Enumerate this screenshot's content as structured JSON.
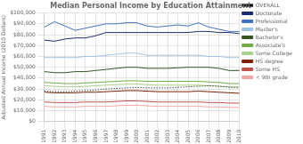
{
  "chart_data": {
    "type": "line",
    "title": "Median Personal Income by Education Attainment",
    "ylabel": "Adjusted Annual Income (2010 Dollars)",
    "categories": [
      "1991",
      "1992",
      "1993",
      "1994",
      "1995",
      "1996",
      "1997",
      "1998",
      "1999",
      "2000",
      "2001",
      "2002",
      "2003",
      "2004",
      "2005",
      "2006",
      "2007",
      "2008",
      "2009",
      "2010"
    ],
    "series": [
      {
        "name": "OVERALL",
        "color": "#000000",
        "line_style": "dotted",
        "values": [
          28000,
          27500,
          27500,
          28000,
          28500,
          29000,
          30000,
          30500,
          31000,
          31500,
          31000,
          31000,
          31000,
          31500,
          32000,
          32500,
          33000,
          32500,
          31500,
          31000
        ]
      },
      {
        "name": "Doctorate",
        "color": "#1f2d6e",
        "line_style": "solid",
        "values": [
          75000,
          74000,
          76000,
          77000,
          77000,
          79000,
          82000,
          82000,
          82000,
          82000,
          82000,
          82000,
          82000,
          82000,
          82000,
          83000,
          83000,
          82000,
          82000,
          81000
        ]
      },
      {
        "name": "Professional",
        "color": "#4472c4",
        "line_style": "solid",
        "values": [
          87000,
          92000,
          88000,
          84000,
          86000,
          88000,
          90000,
          90000,
          91000,
          91000,
          88000,
          87000,
          88000,
          89000,
          88000,
          91000,
          87000,
          85000,
          83000,
          83000
        ]
      },
      {
        "name": "Master's",
        "color": "#9dc3e6",
        "line_style": "solid",
        "values": [
          59000,
          59000,
          59000,
          59000,
          60000,
          60000,
          61000,
          62000,
          63000,
          63000,
          61000,
          61000,
          61000,
          61000,
          61000,
          61000,
          60000,
          60000,
          59000,
          59000
        ]
      },
      {
        "name": "Bachelor's",
        "color": "#375623",
        "line_style": "solid",
        "values": [
          46000,
          45000,
          45000,
          46000,
          46000,
          47000,
          48000,
          49000,
          50000,
          50000,
          49000,
          49000,
          49000,
          49500,
          50000,
          50000,
          50000,
          49000,
          47000,
          47000
        ]
      },
      {
        "name": "Associate's",
        "color": "#70ad47",
        "line_style": "solid",
        "values": [
          36000,
          35500,
          35000,
          35000,
          35500,
          36000,
          36500,
          37000,
          37500,
          37500,
          37000,
          37000,
          37000,
          37000,
          37000,
          37000,
          36500,
          36000,
          35000,
          35000
        ]
      },
      {
        "name": "Some College",
        "color": "#a9d18e",
        "line_style": "solid",
        "values": [
          33000,
          32500,
          32000,
          32000,
          32500,
          33000,
          33500,
          34000,
          34500,
          34500,
          34000,
          33500,
          33500,
          33500,
          33500,
          33500,
          33000,
          32500,
          32000,
          32000
        ]
      },
      {
        "name": "HS degree",
        "color": "#7b2200",
        "line_style": "solid",
        "values": [
          27000,
          26500,
          26500,
          26500,
          27000,
          27000,
          27500,
          28000,
          28500,
          28500,
          28000,
          27500,
          27500,
          27500,
          27500,
          28000,
          27500,
          27000,
          26500,
          26000
        ]
      },
      {
        "name": "Some HS",
        "color": "#c0504d",
        "line_style": "solid",
        "values": [
          18000,
          17500,
          17500,
          17500,
          18000,
          18000,
          18000,
          18500,
          19000,
          19000,
          18500,
          18000,
          18000,
          18000,
          18000,
          18000,
          17500,
          17500,
          17000,
          17000
        ]
      },
      {
        "name": "< 9th grade",
        "color": "#f4a7a3",
        "line_style": "solid",
        "values": [
          14000,
          13500,
          13500,
          13500,
          14000,
          14000,
          14000,
          14500,
          15000,
          15000,
          14500,
          14000,
          14000,
          14000,
          14000,
          14000,
          13500,
          13500,
          13000,
          13000
        ]
      }
    ],
    "ylim": [
      0,
      100000
    ],
    "yticks": [
      {
        "value": 0,
        "label": "$0"
      },
      {
        "value": 10000,
        "label": "$10,000"
      },
      {
        "value": 20000,
        "label": "$20,000"
      },
      {
        "value": 30000,
        "label": "$30,000"
      },
      {
        "value": 40000,
        "label": "$40,000"
      },
      {
        "value": 50000,
        "label": "$50,000"
      },
      {
        "value": 60000,
        "label": "$60,000"
      },
      {
        "value": 70000,
        "label": "$70,000"
      },
      {
        "value": 80000,
        "label": "$80,000"
      },
      {
        "value": 90000,
        "label": "$90,000"
      },
      {
        "value": 100000,
        "label": "$100,000"
      }
    ],
    "grid": true,
    "legend": "right"
  }
}
